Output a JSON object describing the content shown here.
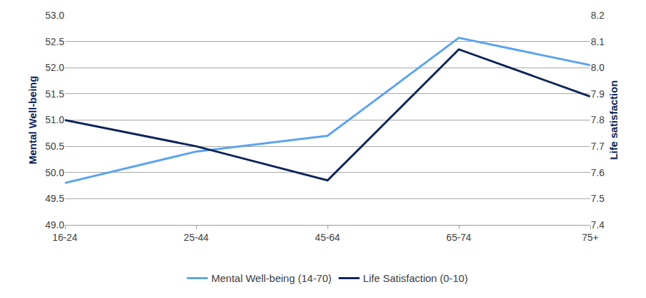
{
  "chart_data": {
    "type": "line",
    "categories": [
      "16-24",
      "25-44",
      "45-64",
      "65-74",
      "75+"
    ],
    "series": [
      {
        "name": "Mental Well-being (14-70)",
        "color": "#5ba3ef",
        "values": [
          49.8,
          50.4,
          50.7,
          52.57,
          52.05
        ]
      },
      {
        "name": "Life Satisfaction (0-10)",
        "color": "#0b2458",
        "values": [
          7.8,
          7.7,
          7.57,
          8.07,
          7.89
        ],
        "axis": "y2"
      }
    ],
    "y_label": "Mental Well-being",
    "y2_label": "Life satisfaction",
    "ylim": [
      49.0,
      53.0
    ],
    "yticks": [
      {
        "value": 49,
        "label": "49.0"
      },
      49.5,
      {
        "value": 50,
        "label": "50.0"
      },
      50.5,
      {
        "value": 51,
        "label": "51.0"
      },
      51.5,
      {
        "value": 52,
        "label": "52.0"
      },
      52.5,
      {
        "value": 53,
        "label": "53.0"
      }
    ],
    "y2lim": [
      7.4,
      8.2
    ],
    "y2ticks": [
      7.4,
      7.5,
      7.6,
      7.7,
      7.8,
      7.9,
      {
        "value": 8,
        "label": "8.0"
      },
      8.1,
      8.2
    ],
    "grid": true,
    "legend": "bottom"
  }
}
